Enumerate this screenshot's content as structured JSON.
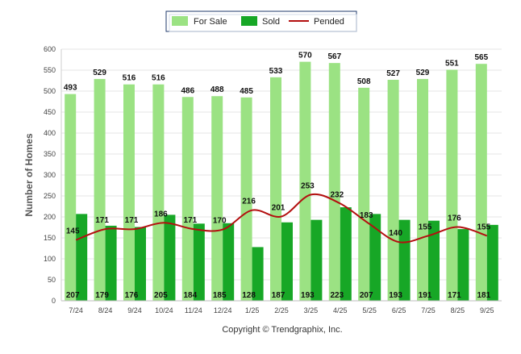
{
  "chart_data": {
    "type": "bar",
    "title": "",
    "xlabel": "",
    "ylabel": "Number of Homes",
    "ylim": [
      0,
      600
    ],
    "yticks": [
      0,
      50,
      100,
      150,
      200,
      250,
      300,
      350,
      400,
      450,
      500,
      550,
      600
    ],
    "grid": true,
    "legend_position": "top-center",
    "categories": [
      "7/24",
      "8/24",
      "9/24",
      "10/24",
      "11/24",
      "12/24",
      "1/25",
      "2/25",
      "3/25",
      "4/25",
      "5/25",
      "6/25",
      "7/25",
      "8/25",
      "9/25"
    ],
    "series": [
      {
        "name": "For Sale",
        "kind": "bar",
        "color": "#9be283",
        "values": [
          493,
          529,
          516,
          516,
          486,
          488,
          485,
          533,
          570,
          567,
          508,
          527,
          529,
          551,
          565
        ]
      },
      {
        "name": "Sold",
        "kind": "bar",
        "color": "#17a726",
        "values": [
          207,
          179,
          176,
          205,
          184,
          185,
          128,
          187,
          193,
          223,
          207,
          193,
          191,
          171,
          181
        ]
      },
      {
        "name": "Pended",
        "kind": "line",
        "color": "#b30f0f",
        "values": [
          145,
          171,
          171,
          186,
          171,
          170,
          216,
          201,
          253,
          232,
          183,
          140,
          155,
          176,
          155
        ]
      }
    ]
  },
  "footer": {
    "copyright": "Copyright © Trendgraphix, Inc."
  }
}
